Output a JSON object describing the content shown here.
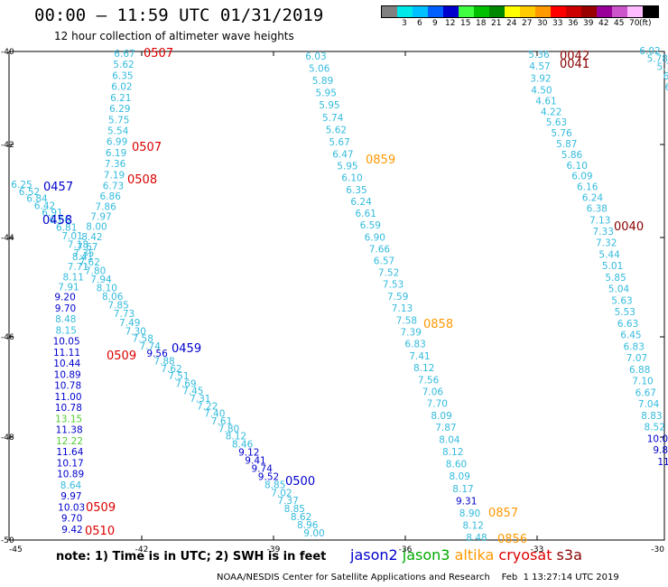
{
  "header": {
    "title": "00:00 — 11:59 UTC 01/31/2019",
    "subtitle": "12 hour collection of altimeter wave heights"
  },
  "legend": {
    "unit": "(ft)",
    "items": [
      {
        "color": "#808080",
        "label": ""
      },
      {
        "color": "#00e8e8",
        "label": "3"
      },
      {
        "color": "#00c0ff",
        "label": "6"
      },
      {
        "color": "#0060ff",
        "label": "9"
      },
      {
        "color": "#0000cc",
        "label": "12"
      },
      {
        "color": "#40ff40",
        "label": "15"
      },
      {
        "color": "#00c000",
        "label": "18"
      },
      {
        "color": "#008800",
        "label": "21"
      },
      {
        "color": "#ffff00",
        "label": "24"
      },
      {
        "color": "#ffcc00",
        "label": "27"
      },
      {
        "color": "#ff9900",
        "label": "30"
      },
      {
        "color": "#ff0000",
        "label": "33"
      },
      {
        "color": "#cc0000",
        "label": "36"
      },
      {
        "color": "#990000",
        "label": "39"
      },
      {
        "color": "#990099",
        "label": "42"
      },
      {
        "color": "#cc55cc",
        "label": "45"
      },
      {
        "color": "#ffbbff",
        "label": "70"
      },
      {
        "color": "#000000",
        "label": ""
      }
    ]
  },
  "axes": {
    "lon_ticks": [
      "-45",
      "-42",
      "-39",
      "-36",
      "-33",
      "-30"
    ],
    "lat_ticks": [
      "-40",
      "-42",
      "-44",
      "-46",
      "-48",
      "-50"
    ]
  },
  "colors": {
    "cyan": "#33bbdd",
    "blue": "#0000cc",
    "green": "#55cc33",
    "orange": "#ff9900",
    "red": "#dd0000",
    "darkred": "#880000"
  },
  "tracks": {
    "A": [
      {
        "v": "6.67",
        "c": "cyan"
      },
      {
        "v": "5.62",
        "c": "cyan"
      },
      {
        "v": "6.35",
        "c": "cyan"
      },
      {
        "v": "6.02",
        "c": "cyan"
      },
      {
        "v": "6.21",
        "c": "cyan"
      },
      {
        "v": "6.29",
        "c": "cyan"
      },
      {
        "v": "5.75",
        "c": "cyan"
      },
      {
        "v": "5.54",
        "c": "cyan"
      },
      {
        "v": "6.99",
        "c": "cyan"
      },
      {
        "v": "6.19",
        "c": "cyan"
      },
      {
        "v": "7.36",
        "c": "cyan"
      },
      {
        "v": "7.19",
        "c": "cyan"
      },
      {
        "v": "6.73",
        "c": "cyan"
      },
      {
        "v": "6.86",
        "c": "cyan"
      },
      {
        "v": "7.86",
        "c": "cyan"
      },
      {
        "v": "7.97",
        "c": "cyan"
      },
      {
        "v": "8.00",
        "c": "cyan"
      },
      {
        "v": "8.42",
        "c": "cyan"
      },
      {
        "v": "7.67",
        "c": "cyan"
      },
      {
        "v": "8.41",
        "c": "cyan"
      },
      {
        "v": "7.71",
        "c": "cyan"
      },
      {
        "v": "8.11",
        "c": "cyan"
      },
      {
        "v": "7.91",
        "c": "cyan"
      },
      {
        "v": "9.20",
        "c": "blue"
      },
      {
        "v": "9.70",
        "c": "blue"
      },
      {
        "v": "8.48",
        "c": "cyan"
      },
      {
        "v": "8.15",
        "c": "cyan"
      },
      {
        "v": "10.05",
        "c": "blue"
      },
      {
        "v": "11.11",
        "c": "blue"
      },
      {
        "v": "10.44",
        "c": "blue"
      },
      {
        "v": "10.89",
        "c": "blue"
      },
      {
        "v": "10.78",
        "c": "blue"
      },
      {
        "v": "11.00",
        "c": "blue"
      },
      {
        "v": "10.78",
        "c": "blue"
      },
      {
        "v": "13.15",
        "c": "green"
      },
      {
        "v": "11.38",
        "c": "blue"
      },
      {
        "v": "12.22",
        "c": "green"
      },
      {
        "v": "11.64",
        "c": "blue"
      },
      {
        "v": "10.17",
        "c": "blue"
      },
      {
        "v": "10.89",
        "c": "blue"
      },
      {
        "v": "8.64",
        "c": "cyan"
      },
      {
        "v": "9.97",
        "c": "blue"
      },
      {
        "v": "10.03",
        "c": "blue"
      },
      {
        "v": "9.70",
        "c": "blue"
      },
      {
        "v": "9.42",
        "c": "blue"
      }
    ],
    "B": [
      {
        "v": "6.25",
        "c": "cyan"
      },
      {
        "v": "6.52",
        "c": "cyan"
      },
      {
        "v": "6.84",
        "c": "cyan"
      },
      {
        "v": "6.42",
        "c": "cyan"
      },
      {
        "v": "6.91",
        "c": "cyan"
      },
      {
        "v": "6.66",
        "c": "cyan"
      },
      {
        "v": "6.81",
        "c": "cyan"
      },
      {
        "v": "7.01",
        "c": "cyan"
      },
      {
        "v": "7.18",
        "c": "cyan"
      },
      {
        "v": "7.35",
        "c": "cyan"
      },
      {
        "v": "7.62",
        "c": "cyan"
      },
      {
        "v": "7.80",
        "c": "cyan"
      },
      {
        "v": "7.94",
        "c": "cyan"
      },
      {
        "v": "8.10",
        "c": "cyan"
      },
      {
        "v": "8.06",
        "c": "cyan"
      },
      {
        "v": "7.85",
        "c": "cyan"
      },
      {
        "v": "7.73",
        "c": "cyan"
      },
      {
        "v": "7.49",
        "c": "cyan"
      },
      {
        "v": "7.30",
        "c": "cyan"
      },
      {
        "v": "7.58",
        "c": "cyan"
      },
      {
        "v": "7.74",
        "c": "cyan"
      },
      {
        "v": "9.56",
        "c": "blue"
      },
      {
        "v": "7.88",
        "c": "cyan"
      },
      {
        "v": "7.62",
        "c": "cyan"
      },
      {
        "v": "7.51",
        "c": "cyan"
      },
      {
        "v": "7.69",
        "c": "cyan"
      },
      {
        "v": "7.45",
        "c": "cyan"
      },
      {
        "v": "7.31",
        "c": "cyan"
      },
      {
        "v": "7.22",
        "c": "cyan"
      },
      {
        "v": "7.40",
        "c": "cyan"
      },
      {
        "v": "7.61",
        "c": "cyan"
      },
      {
        "v": "7.80",
        "c": "cyan"
      },
      {
        "v": "8.12",
        "c": "cyan"
      },
      {
        "v": "8.46",
        "c": "cyan"
      },
      {
        "v": "9.12",
        "c": "blue"
      },
      {
        "v": "9.41",
        "c": "blue"
      },
      {
        "v": "9.74",
        "c": "blue"
      },
      {
        "v": "9.52",
        "c": "blue"
      },
      {
        "v": "8.85",
        "c": "cyan"
      },
      {
        "v": "7.02",
        "c": "cyan"
      },
      {
        "v": "7.37",
        "c": "cyan"
      },
      {
        "v": "8.85",
        "c": "cyan"
      },
      {
        "v": "8.62",
        "c": "cyan"
      },
      {
        "v": "8.96",
        "c": "cyan"
      },
      {
        "v": "9.00",
        "c": "cyan"
      }
    ],
    "C": [
      {
        "v": "6.03",
        "c": "cyan"
      },
      {
        "v": "5.06",
        "c": "cyan"
      },
      {
        "v": "5.89",
        "c": "cyan"
      },
      {
        "v": "5.95",
        "c": "cyan"
      },
      {
        "v": "5.95",
        "c": "cyan"
      },
      {
        "v": "5.74",
        "c": "cyan"
      },
      {
        "v": "5.62",
        "c": "cyan"
      },
      {
        "v": "5.67",
        "c": "cyan"
      },
      {
        "v": "6.47",
        "c": "cyan"
      },
      {
        "v": "5.95",
        "c": "cyan"
      },
      {
        "v": "6.10",
        "c": "cyan"
      },
      {
        "v": "6.35",
        "c": "cyan"
      },
      {
        "v": "6.24",
        "c": "cyan"
      },
      {
        "v": "6.61",
        "c": "cyan"
      },
      {
        "v": "6.59",
        "c": "cyan"
      },
      {
        "v": "6.90",
        "c": "cyan"
      },
      {
        "v": "7.66",
        "c": "cyan"
      },
      {
        "v": "6.57",
        "c": "cyan"
      },
      {
        "v": "7.52",
        "c": "cyan"
      },
      {
        "v": "7.53",
        "c": "cyan"
      },
      {
        "v": "7.59",
        "c": "cyan"
      },
      {
        "v": "7.13",
        "c": "cyan"
      },
      {
        "v": "7.58",
        "c": "cyan"
      },
      {
        "v": "7.39",
        "c": "cyan"
      },
      {
        "v": "6.83",
        "c": "cyan"
      },
      {
        "v": "7.41",
        "c": "cyan"
      },
      {
        "v": "8.12",
        "c": "cyan"
      },
      {
        "v": "7.56",
        "c": "cyan"
      },
      {
        "v": "7.06",
        "c": "cyan"
      },
      {
        "v": "7.70",
        "c": "cyan"
      },
      {
        "v": "8.09",
        "c": "cyan"
      },
      {
        "v": "7.87",
        "c": "cyan"
      },
      {
        "v": "8.04",
        "c": "cyan"
      },
      {
        "v": "8.12",
        "c": "cyan"
      },
      {
        "v": "8.60",
        "c": "cyan"
      },
      {
        "v": "8.09",
        "c": "cyan"
      },
      {
        "v": "8.17",
        "c": "cyan"
      },
      {
        "v": "9.31",
        "c": "blue"
      },
      {
        "v": "8.90",
        "c": "cyan"
      },
      {
        "v": "8.12",
        "c": "cyan"
      },
      {
        "v": "8.48",
        "c": "cyan"
      }
    ],
    "D": [
      {
        "v": "5.36",
        "c": "cyan"
      },
      {
        "v": "4.57",
        "c": "cyan"
      },
      {
        "v": "3.92",
        "c": "cyan"
      },
      {
        "v": "4.50",
        "c": "cyan"
      },
      {
        "v": "4.61",
        "c": "cyan"
      },
      {
        "v": "4.22",
        "c": "cyan"
      },
      {
        "v": "5.63",
        "c": "cyan"
      },
      {
        "v": "5.76",
        "c": "cyan"
      },
      {
        "v": "5.87",
        "c": "cyan"
      },
      {
        "v": "5.86",
        "c": "cyan"
      },
      {
        "v": "6.10",
        "c": "cyan"
      },
      {
        "v": "6.09",
        "c": "cyan"
      },
      {
        "v": "6.16",
        "c": "cyan"
      },
      {
        "v": "6.24",
        "c": "cyan"
      },
      {
        "v": "6.38",
        "c": "cyan"
      },
      {
        "v": "7.13",
        "c": "cyan"
      },
      {
        "v": "7.33",
        "c": "cyan"
      },
      {
        "v": "7.32",
        "c": "cyan"
      },
      {
        "v": "5.44",
        "c": "cyan"
      },
      {
        "v": "5.01",
        "c": "cyan"
      },
      {
        "v": "5.85",
        "c": "cyan"
      },
      {
        "v": "5.04",
        "c": "cyan"
      },
      {
        "v": "5.63",
        "c": "cyan"
      },
      {
        "v": "5.53",
        "c": "cyan"
      },
      {
        "v": "6.63",
        "c": "cyan"
      },
      {
        "v": "6.45",
        "c": "cyan"
      },
      {
        "v": "6.83",
        "c": "cyan"
      },
      {
        "v": "7.07",
        "c": "cyan"
      },
      {
        "v": "6.88",
        "c": "cyan"
      },
      {
        "v": "7.10",
        "c": "cyan"
      },
      {
        "v": "6.67",
        "c": "cyan"
      },
      {
        "v": "7.04",
        "c": "cyan"
      },
      {
        "v": "8.83",
        "c": "cyan"
      },
      {
        "v": "8.52",
        "c": "cyan"
      },
      {
        "v": "10.0",
        "c": "blue"
      },
      {
        "v": "9.8",
        "c": "blue"
      },
      {
        "v": "11",
        "c": "blue"
      }
    ],
    "E": [
      {
        "v": "6.02",
        "c": "cyan"
      },
      {
        "v": "5.78",
        "c": "cyan"
      },
      {
        "v": "5.7",
        "c": "cyan"
      },
      {
        "v": "6.",
        "c": "cyan"
      },
      {
        "v": "6",
        "c": "cyan"
      }
    ]
  },
  "time_labels": [
    {
      "t": "0507",
      "c": "red"
    },
    {
      "t": "0507",
      "c": "red"
    },
    {
      "t": "0508",
      "c": "red"
    },
    {
      "t": "0457",
      "c": "blue"
    },
    {
      "t": "0458",
      "c": "blue"
    },
    {
      "t": "0509",
      "c": "red"
    },
    {
      "t": "0459",
      "c": "blue"
    },
    {
      "t": "0500",
      "c": "blue"
    },
    {
      "t": "0509",
      "c": "red"
    },
    {
      "t": "0510",
      "c": "red"
    },
    {
      "t": "0859",
      "c": "orange"
    },
    {
      "t": "0858",
      "c": "orange"
    },
    {
      "t": "0857",
      "c": "orange"
    },
    {
      "t": "0856",
      "c": "orange"
    },
    {
      "t": "0042",
      "c": "darkred"
    },
    {
      "t": "0041",
      "c": "darkred"
    },
    {
      "t": "0040",
      "c": "darkred"
    }
  ],
  "footer": {
    "note": "note:  1) Time is in UTC;  2) SWH is in feet",
    "satellites": [
      {
        "name": "jason2",
        "color": "#0000cc"
      },
      {
        "name": "jason3",
        "color": "#00aa00"
      },
      {
        "name": "altika",
        "color": "#ff9900"
      },
      {
        "name": "cryosat",
        "color": "#dd0000"
      },
      {
        "name": "s3a",
        "color": "#880000"
      }
    ],
    "credit": "NOAA/NESDIS Center for Satellite Applications and Research    Feb  1 13:27:14 UTC 2019"
  }
}
